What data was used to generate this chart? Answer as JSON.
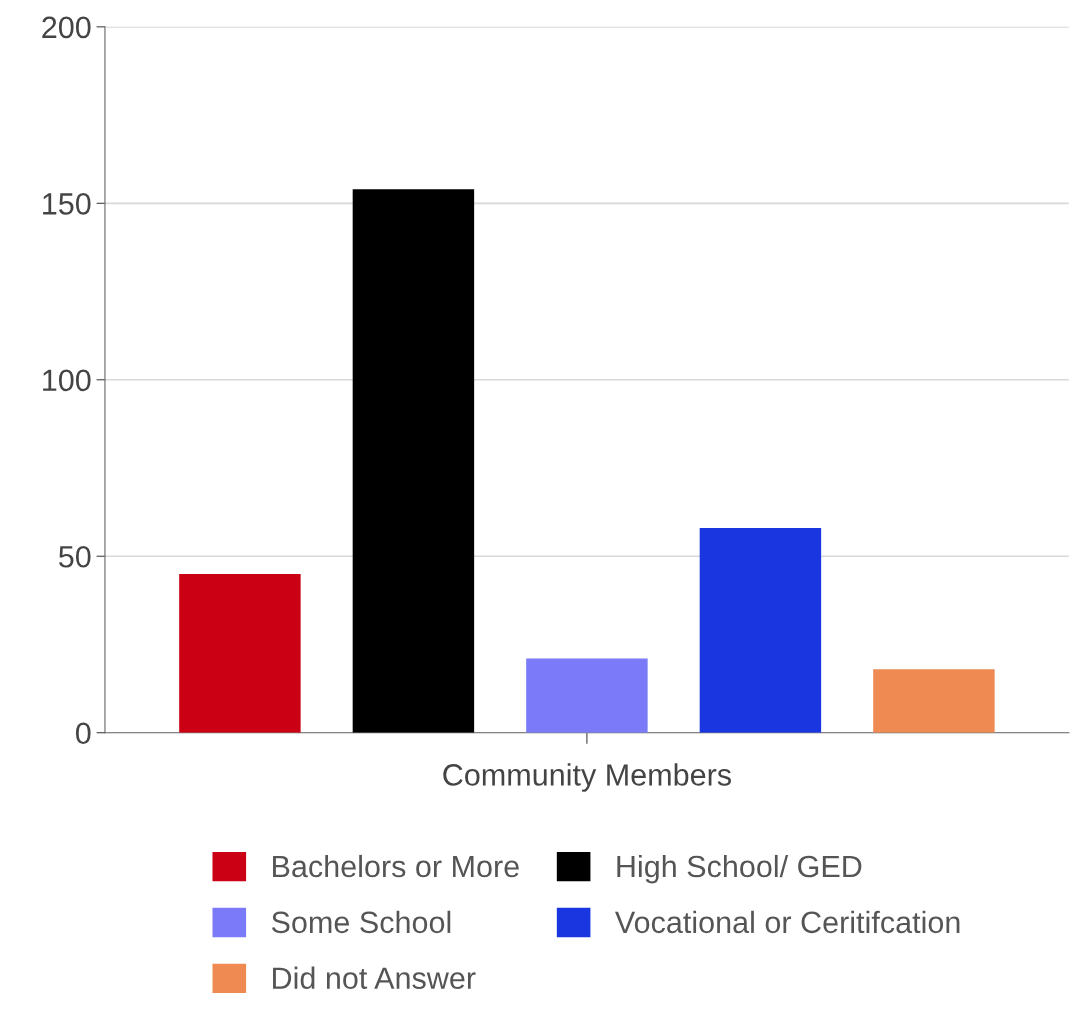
{
  "chart_data": {
    "type": "bar",
    "categories": [
      "Community Members"
    ],
    "series": [
      {
        "name": "Bachelors or More",
        "color": "#cc0014",
        "values": [
          45
        ]
      },
      {
        "name": "High School/ GED",
        "color": "#000000",
        "values": [
          154
        ]
      },
      {
        "name": "Some School",
        "color": "#7b7bfa",
        "values": [
          21
        ]
      },
      {
        "name": "Vocational or Ceritifcation",
        "color": "#1a36e0",
        "values": [
          58
        ]
      },
      {
        "name": "Did not Answer",
        "color": "#ee8a52",
        "values": [
          18
        ]
      }
    ],
    "ylim": [
      0,
      200
    ],
    "yticks": [
      0,
      50,
      100,
      150,
      200
    ],
    "grid": "y",
    "legend": "bottom"
  }
}
